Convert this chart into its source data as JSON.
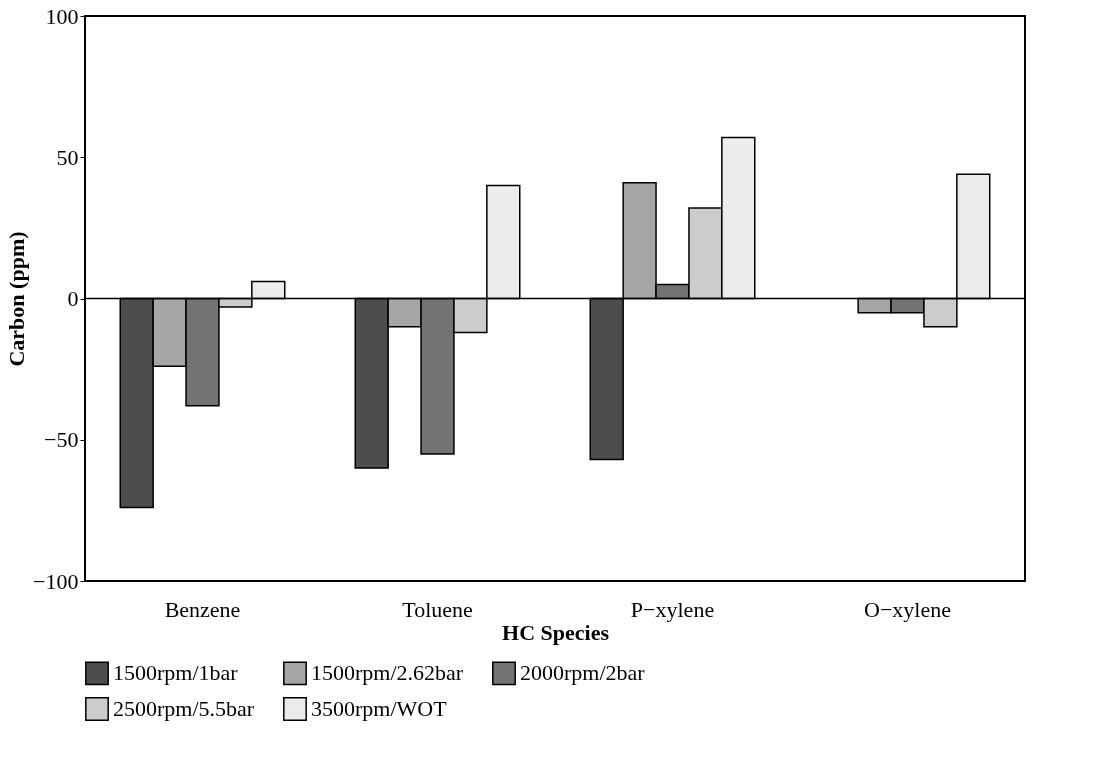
{
  "chart_data": {
    "type": "bar",
    "xlabel": "HC Species",
    "ylabel": "Carbon (ppm)",
    "categories": [
      "Benzene",
      "Toluene",
      "P−xylene",
      "O−xylene"
    ],
    "series": [
      {
        "name": "1500rpm/1bar",
        "color": "#4d4d4d",
        "values": [
          -74,
          -60,
          -57,
          null
        ]
      },
      {
        "name": "1500rpm/2.62bar",
        "color": "#a6a6a6",
        "values": [
          -24,
          -10,
          41,
          -5
        ]
      },
      {
        "name": "2000rpm/2bar",
        "color": "#737373",
        "values": [
          -38,
          -55,
          5,
          -5
        ]
      },
      {
        "name": "2500rpm/5.5bar",
        "color": "#cccccc",
        "values": [
          -3,
          -12,
          32,
          -10
        ]
      },
      {
        "name": "3500rpm/WOT",
        "color": "#ececec",
        "values": [
          6,
          40,
          57,
          44
        ]
      }
    ],
    "ylim": [
      -100,
      100
    ],
    "yticks": [
      -100,
      -50,
      0,
      50,
      100
    ],
    "ref_lines": [
      {
        "axis": "y",
        "value": 0,
        "color": "#000000"
      }
    ],
    "grid": false,
    "legend": "bottom"
  }
}
